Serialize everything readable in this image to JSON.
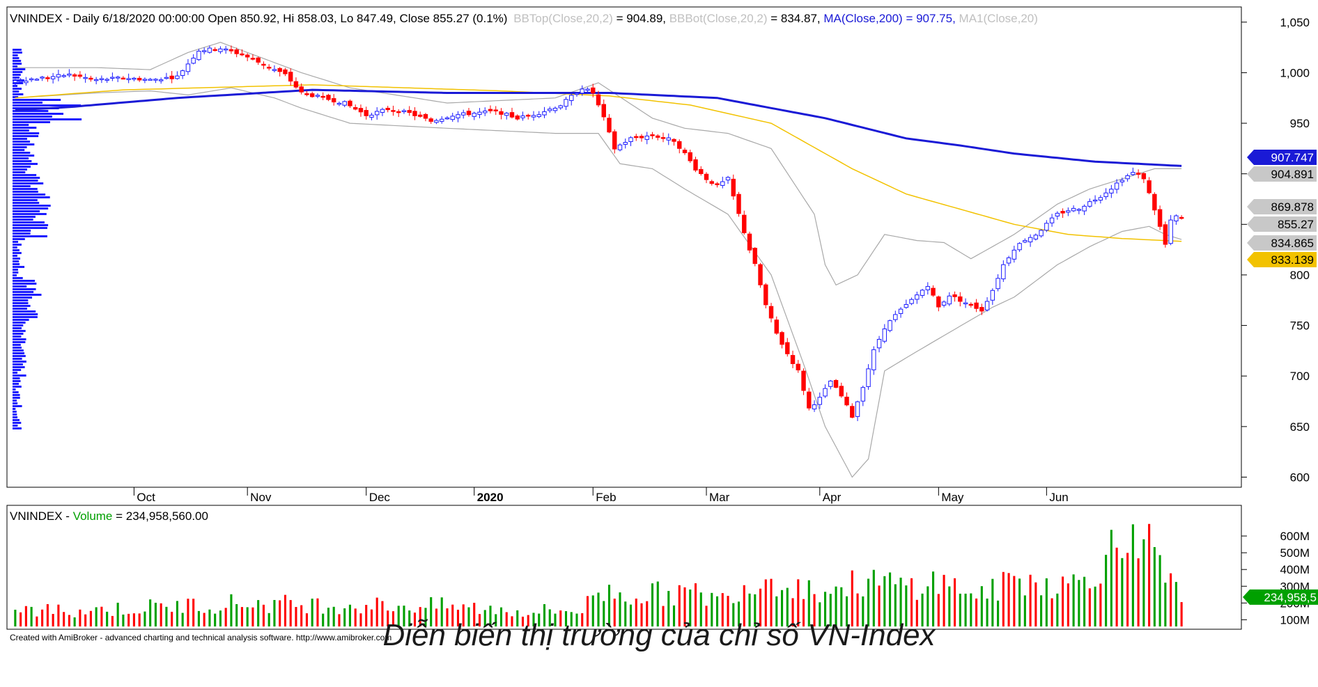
{
  "header": {
    "main_title": "VNINDEX - Daily 6/18/2020 00:00:00 Open 850.92, Hi 858.03, Lo 847.49, Close 855.27 (0.1%)",
    "bbtop_label": "BBTop(Close,20,2)",
    "bbtop_value": " = 904.89, ",
    "bbbot_label": "BBBot(Close,20,2)",
    "bbbot_value": " = 834.87, ",
    "ma200_label": "MA(Close,200) = 907.75, ",
    "ma1_label": "MA1(Close,20)"
  },
  "volume_header": {
    "prefix": "VNINDEX - ",
    "label": "Volume",
    "value": " = 234,958,560.00"
  },
  "footer_credit": "Created with AmiBroker - advanced charting and technical analysis software. http://www.amibroker.com",
  "caption": "Diễn biến thị trường của chỉ số VN-Index",
  "colors": {
    "up": "#1a1aff",
    "down": "#ff0000",
    "ma200": "#1a1ad6",
    "ma_yellow": "#f2c200",
    "bollinger": "#a8a8a8",
    "vol_up": "#00a000",
    "vol_down": "#ff0000",
    "tag_gray": "#c8c8c8"
  },
  "chart_data": [
    {
      "type": "candlestick",
      "ylim": [
        590,
        1065
      ],
      "y_ticks": [
        "1,050",
        "1,000",
        "950",
        "900",
        "850",
        "800",
        "750",
        "700",
        "650",
        "600"
      ],
      "x_labels": [
        "Oct",
        "Nov",
        "Dec",
        "2020",
        "Feb",
        "Mar",
        "Apr",
        "May",
        "Jun"
      ],
      "y_tags": [
        {
          "label": "907.747",
          "value": 907.75,
          "style": "ma200"
        },
        {
          "label": "904.891",
          "value": 904.89,
          "style": "bbtop"
        },
        {
          "label": "869.878",
          "value": 869.88,
          "style": "gray"
        },
        {
          "label": "855.27",
          "value": 855.27,
          "style": "close"
        },
        {
          "label": "834.865",
          "value": 834.87,
          "style": "bbbot"
        },
        {
          "label": "833.139",
          "value": 833.14,
          "style": "yellow"
        }
      ],
      "price_anchors": [
        [
          0,
          992
        ],
        [
          5,
          995
        ],
        [
          10,
          998
        ],
        [
          15,
          993
        ],
        [
          20,
          995
        ],
        [
          25,
          993
        ],
        [
          30,
          996
        ],
        [
          34,
          1022
        ],
        [
          38,
          1024
        ],
        [
          42,
          1018
        ],
        [
          46,
          1008
        ],
        [
          50,
          998
        ],
        [
          53,
          980
        ],
        [
          57,
          975
        ],
        [
          61,
          970
        ],
        [
          65,
          958
        ],
        [
          69,
          964
        ],
        [
          73,
          960
        ],
        [
          77,
          952
        ],
        [
          81,
          958
        ],
        [
          85,
          960
        ],
        [
          89,
          962
        ],
        [
          93,
          955
        ],
        [
          97,
          960
        ],
        [
          101,
          968
        ],
        [
          105,
          985
        ],
        [
          107,
          980
        ],
        [
          109,
          955
        ],
        [
          111,
          925
        ],
        [
          114,
          935
        ],
        [
          118,
          938
        ],
        [
          122,
          933
        ],
        [
          124,
          920
        ],
        [
          126,
          905
        ],
        [
          128,
          895
        ],
        [
          130,
          888
        ],
        [
          132,
          895
        ],
        [
          134,
          860
        ],
        [
          136,
          825
        ],
        [
          137,
          810
        ],
        [
          139,
          770
        ],
        [
          141,
          742
        ],
        [
          143,
          722
        ],
        [
          145,
          705
        ],
        [
          147,
          668
        ],
        [
          149,
          678
        ],
        [
          151,
          695
        ],
        [
          153,
          680
        ],
        [
          155,
          660
        ],
        [
          157,
          690
        ],
        [
          159,
          725
        ],
        [
          161,
          748
        ],
        [
          163,
          760
        ],
        [
          165,
          770
        ],
        [
          167,
          780
        ],
        [
          169,
          790
        ],
        [
          171,
          768
        ],
        [
          173,
          780
        ],
        [
          175,
          775
        ],
        [
          177,
          770
        ],
        [
          179,
          765
        ],
        [
          181,
          785
        ],
        [
          183,
          810
        ],
        [
          185,
          826
        ],
        [
          187,
          835
        ],
        [
          189,
          840
        ],
        [
          191,
          850
        ],
        [
          193,
          860
        ],
        [
          195,
          864
        ],
        [
          197,
          866
        ],
        [
          199,
          872
        ],
        [
          201,
          878
        ],
        [
          203,
          886
        ],
        [
          205,
          895
        ],
        [
          207,
          901
        ],
        [
          209,
          896
        ],
        [
          211,
          865
        ],
        [
          213,
          830
        ],
        [
          214,
          853
        ],
        [
          215,
          858
        ],
        [
          216,
          855
        ]
      ],
      "bollinger_top_anchors": [
        [
          0,
          1005
        ],
        [
          15,
          1005
        ],
        [
          25,
          1003
        ],
        [
          32,
          1020
        ],
        [
          38,
          1030
        ],
        [
          48,
          1010
        ],
        [
          53,
          1000
        ],
        [
          62,
          985
        ],
        [
          80,
          970
        ],
        [
          100,
          975
        ],
        [
          108,
          990
        ],
        [
          118,
          955
        ],
        [
          124,
          945
        ],
        [
          132,
          940
        ],
        [
          140,
          925
        ],
        [
          148,
          860
        ],
        [
          150,
          810
        ],
        [
          152,
          790
        ],
        [
          156,
          800
        ],
        [
          161,
          840
        ],
        [
          167,
          834
        ],
        [
          172,
          832
        ],
        [
          177,
          816
        ],
        [
          181,
          828
        ],
        [
          185,
          840
        ],
        [
          193,
          870
        ],
        [
          199,
          885
        ],
        [
          205,
          895
        ],
        [
          211,
          905
        ],
        [
          216,
          905
        ]
      ],
      "bollinger_bottom_anchors": [
        [
          0,
          975
        ],
        [
          15,
          980
        ],
        [
          25,
          982
        ],
        [
          32,
          978
        ],
        [
          40,
          985
        ],
        [
          48,
          975
        ],
        [
          53,
          965
        ],
        [
          62,
          950
        ],
        [
          80,
          945
        ],
        [
          100,
          940
        ],
        [
          108,
          940
        ],
        [
          112,
          910
        ],
        [
          118,
          905
        ],
        [
          124,
          885
        ],
        [
          132,
          860
        ],
        [
          140,
          800
        ],
        [
          146,
          712
        ],
        [
          150,
          650
        ],
        [
          155,
          600
        ],
        [
          158,
          618
        ],
        [
          161,
          705
        ],
        [
          165,
          718
        ],
        [
          172,
          740
        ],
        [
          181,
          768
        ],
        [
          185,
          778
        ],
        [
          193,
          810
        ],
        [
          199,
          828
        ],
        [
          205,
          843
        ],
        [
          210,
          848
        ],
        [
          213,
          840
        ],
        [
          216,
          835
        ]
      ],
      "ma200_anchors": [
        [
          0,
          963
        ],
        [
          10,
          966
        ],
        [
          30,
          975
        ],
        [
          55,
          983
        ],
        [
          80,
          980
        ],
        [
          110,
          980
        ],
        [
          130,
          975
        ],
        [
          150,
          955
        ],
        [
          165,
          935
        ],
        [
          175,
          928
        ],
        [
          185,
          920
        ],
        [
          200,
          912
        ],
        [
          216,
          907.75
        ]
      ],
      "ma_yellow_anchors": [
        [
          0,
          975
        ],
        [
          20,
          983
        ],
        [
          55,
          988
        ],
        [
          90,
          982
        ],
        [
          110,
          977
        ],
        [
          125,
          968
        ],
        [
          140,
          950
        ],
        [
          155,
          905
        ],
        [
          165,
          880
        ],
        [
          175,
          865
        ],
        [
          185,
          850
        ],
        [
          195,
          840
        ],
        [
          205,
          836
        ],
        [
          216,
          833.14
        ]
      ],
      "bar_count": 217
    },
    {
      "type": "bar",
      "title": "VNINDEX - Volume = 234,958,560.00",
      "y_ticks": [
        "600M",
        "500M",
        "400M",
        "300M",
        "200M",
        "100M"
      ],
      "ylim": [
        60,
        700
      ],
      "last_value_tag": "234,958,5",
      "volume_anchors": [
        [
          0,
          150
        ],
        [
          20,
          165
        ],
        [
          40,
          200
        ],
        [
          60,
          190
        ],
        [
          80,
          180
        ],
        [
          95,
          150
        ],
        [
          105,
          160
        ],
        [
          108,
          270
        ],
        [
          115,
          250
        ],
        [
          125,
          260
        ],
        [
          131,
          220
        ],
        [
          133,
          280
        ],
        [
          137,
          320
        ],
        [
          140,
          350
        ],
        [
          145,
          300
        ],
        [
          150,
          270
        ],
        [
          158,
          330
        ],
        [
          165,
          300
        ],
        [
          170,
          330
        ],
        [
          175,
          290
        ],
        [
          180,
          250
        ],
        [
          185,
          340
        ],
        [
          190,
          330
        ],
        [
          195,
          300
        ],
        [
          200,
          400
        ],
        [
          203,
          520
        ],
        [
          205,
          500
        ],
        [
          207,
          700
        ],
        [
          209,
          600
        ],
        [
          211,
          460
        ],
        [
          213,
          330
        ],
        [
          216,
          235
        ]
      ]
    }
  ]
}
